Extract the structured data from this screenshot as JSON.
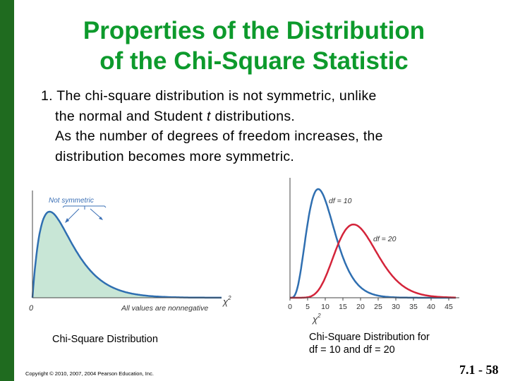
{
  "title": {
    "line1": "Properties of the Distribution",
    "line2": "of the Chi-Square Statistic"
  },
  "body": {
    "number": "1.",
    "line1": "The chi-square distribution is not symmetric, unlike",
    "line2_pre": "the normal and Student ",
    "line2_t": "t",
    "line2_post": " distributions.",
    "line3": "As the number of degrees of freedom increases, the",
    "line4": "distribution becomes more symmetric."
  },
  "colors": {
    "title": "#0d9a2c",
    "sidebar": "#1f6b1f",
    "curve_blue": "#2f6fb1",
    "curve_red": "#d4243a",
    "fill_green": "#c8e6d6",
    "annotation": "#3a6fb5"
  },
  "chart_data": [
    {
      "type": "line",
      "shaded_area": true,
      "annotation": "Not symmetric",
      "xaxis_note": "All values are nonnegative",
      "x_tick": "0",
      "xlabel_symbol": "χ",
      "xlabel_exp": "2"
    },
    {
      "type": "line",
      "x_ticks": [
        "0",
        "5",
        "10",
        "15",
        "20",
        "25",
        "30",
        "35",
        "40",
        "45"
      ],
      "xlabel_symbol": "χ",
      "xlabel_exp": "2",
      "xlim": [
        0,
        47
      ],
      "series": [
        {
          "name": "df = 10",
          "df": 10,
          "color": "#2f6fb1"
        },
        {
          "name": "df = 20",
          "df": 20,
          "color": "#d4243a"
        }
      ]
    }
  ],
  "captions": {
    "left": "Chi-Square Distribution",
    "right_line1": "Chi-Square Distribution for",
    "right_line2": "df = 10 and df = 20"
  },
  "footer": {
    "copyright": "Copyright © 2010, 2007, 2004 Pearson Education, Inc.",
    "slide_number": "7.1 - 58"
  }
}
